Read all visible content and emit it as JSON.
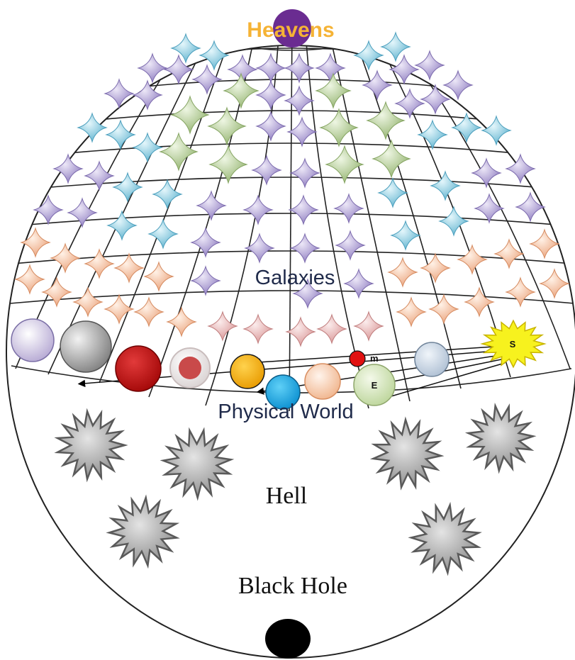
{
  "labels": {
    "heavens": "Heavens",
    "galaxies": "Galaxies",
    "physical_world": "Physical World",
    "hell": "Hell",
    "black_hole": "Black Hole",
    "sun": "S",
    "earth": "E",
    "moon": "m"
  },
  "colors": {
    "heavens_text": "#f5b335",
    "heavens_orb": "#6a2c91",
    "star_purple": "#9a8cc4",
    "star_blue": "#76c1d8",
    "star_green": "#a9c48a",
    "star_orange": "#f0b08a",
    "star_pink": "#e3a6a6",
    "sun": "#f7f21e",
    "black_hole": "#000000",
    "burst_gray": "#a8a8a8"
  },
  "icons": {
    "star": "four-point-star-icon",
    "burst": "spiky-burst-icon",
    "planet": "planet-circle-icon"
  }
}
